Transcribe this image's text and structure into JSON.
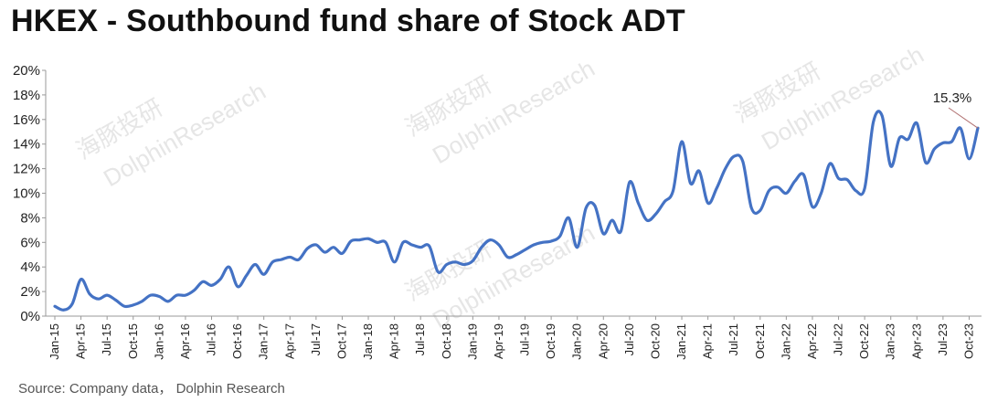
{
  "title": "HKEX - Southbound fund share of Stock ADT",
  "source": "Source: Company data， Dolphin Research",
  "watermarks": [
    "海豚投研",
    "DolphinResearch",
    "海豚投研",
    "DolphinResearch",
    "海豚投研",
    "DolphinResearch",
    "海豚投研",
    "DolphinResearch"
  ],
  "colors": {
    "line": "#4472c4",
    "annotation_line": "#b07070",
    "axis": "#999999"
  },
  "chart_data": {
    "type": "line",
    "ylim": [
      0,
      20
    ],
    "yticks": [
      0,
      2,
      4,
      6,
      8,
      10,
      12,
      14,
      16,
      18,
      20
    ],
    "ytick_labels": [
      "0%",
      "2%",
      "4%",
      "6%",
      "8%",
      "10%",
      "12%",
      "14%",
      "16%",
      "18%",
      "20%"
    ],
    "xtick_labels": [
      "Jan-15",
      "Apr-15",
      "Jul-15",
      "Oct-15",
      "Jan-16",
      "Apr-16",
      "Jul-16",
      "Oct-16",
      "Jan-17",
      "Apr-17",
      "Jul-17",
      "Oct-17",
      "Jan-18",
      "Apr-18",
      "Jul-18",
      "Oct-18",
      "Jan-19",
      "Apr-19",
      "Jul-19",
      "Oct-19",
      "Jan-20",
      "Apr-20",
      "Jul-20",
      "Oct-20",
      "Jan-21",
      "Apr-21",
      "Jul-21",
      "Oct-21",
      "Jan-22",
      "Apr-22",
      "Jul-22",
      "Oct-22",
      "Jan-23",
      "Apr-23",
      "Jul-23",
      "Oct-23"
    ],
    "series": [
      {
        "values": [
          0.8,
          0.5,
          1.0,
          3.0,
          1.8,
          1.4,
          1.7,
          1.3,
          0.8,
          0.9,
          1.2,
          1.7,
          1.6,
          1.2,
          1.7,
          1.7,
          2.1,
          2.8,
          2.5,
          3.0,
          4.0,
          2.4,
          3.3,
          4.2,
          3.4,
          4.4,
          4.6,
          4.8,
          4.6,
          5.5,
          5.8,
          5.2,
          5.6,
          5.1,
          6.1,
          6.2,
          6.3,
          6.0,
          6.0,
          4.4,
          6.0,
          5.8,
          5.6,
          5.7,
          3.6,
          4.2,
          4.4,
          4.2,
          4.5,
          5.6,
          6.2,
          5.8,
          4.8,
          5.0,
          5.4,
          5.8,
          6.0,
          6.1,
          6.5,
          8.0,
          5.6,
          8.8,
          9.0,
          6.7,
          7.8,
          6.9,
          10.9,
          9.2,
          7.8,
          8.3,
          9.3,
          10.2,
          14.2,
          10.8,
          11.8,
          9.2,
          10.4,
          12.0,
          13.0,
          12.6,
          8.8,
          8.6,
          10.2,
          10.5,
          10.0,
          11.0,
          11.5,
          8.9,
          10.0,
          12.4,
          11.2,
          11.1,
          10.2,
          10.4,
          15.8,
          16.3,
          12.2,
          14.5,
          14.4,
          15.7,
          12.5,
          13.6,
          14.1,
          14.2,
          15.3,
          12.8,
          15.3
        ]
      }
    ],
    "annotations": [
      {
        "text": "15.3%",
        "index": 106,
        "value": 15.3
      }
    ],
    "grid": false
  }
}
